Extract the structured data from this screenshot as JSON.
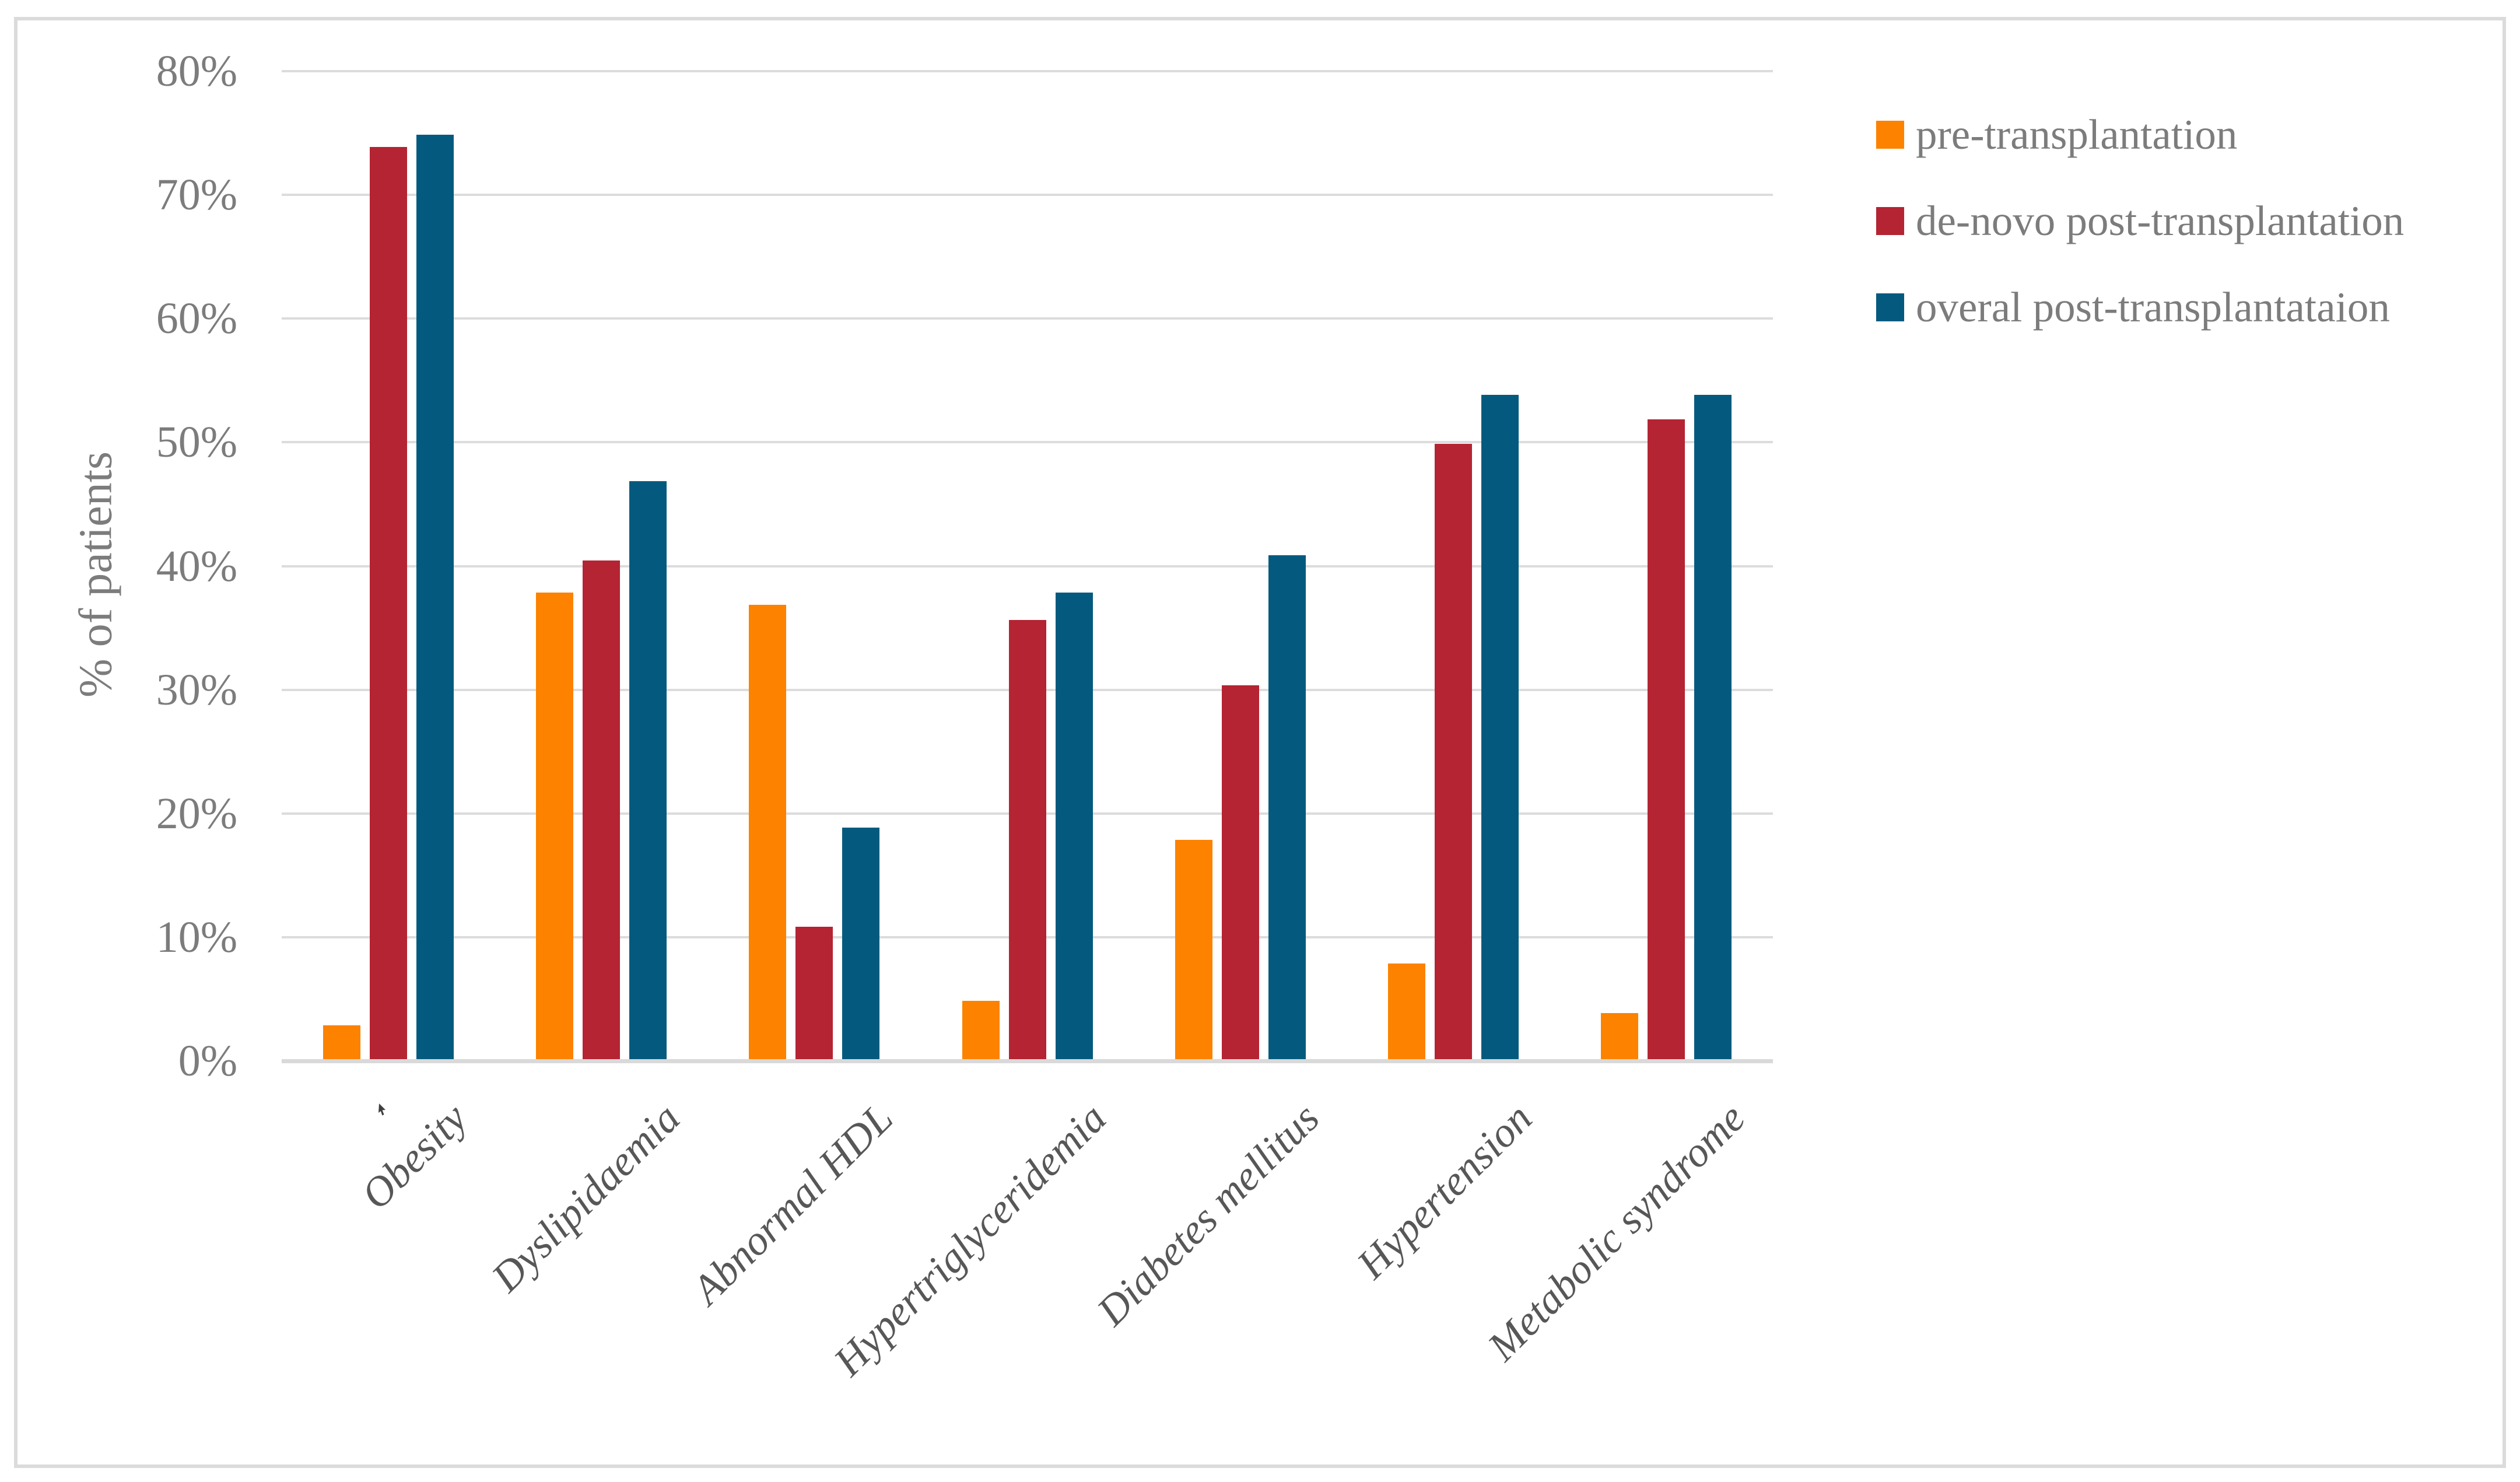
{
  "figure": {
    "background": "#ffffff",
    "border_color": "#dbdbdb"
  },
  "chart_data": {
    "type": "bar",
    "title": "",
    "ylabel": "% of patients",
    "xlabel": "",
    "categories": [
      "Obesity",
      "Dyslipidaemia",
      "Abnormal HDL",
      "Hypertriglyceridemia",
      "Diabetes mellitus",
      "Hypertension",
      "Metabolic syndrome"
    ],
    "series": [
      {
        "name": "pre-transplantation",
        "color": "#fc8200",
        "values": [
          3,
          38,
          37,
          5,
          18,
          8,
          4
        ]
      },
      {
        "name": "de-novo post-transplantation",
        "color": "#b42433",
        "values": [
          74,
          40.6,
          11,
          35.8,
          30.5,
          50,
          52
        ]
      },
      {
        "name": "overal post-transplantataion",
        "color": "#045a7e",
        "values": [
          75,
          47,
          19,
          38,
          41,
          54,
          54
        ]
      }
    ],
    "ylim": [
      0,
      80
    ],
    "ytick_step": 10,
    "yticks": [
      "0%",
      "10%",
      "20%",
      "30%",
      "40%",
      "50%",
      "60%",
      "70%",
      "80%"
    ],
    "grid": true,
    "gridline_color": "#dcdcdc",
    "legend_position": "right",
    "tick_color": "#7c7c7c",
    "category_label_color": "#575757"
  },
  "cursor": {
    "present": true
  }
}
